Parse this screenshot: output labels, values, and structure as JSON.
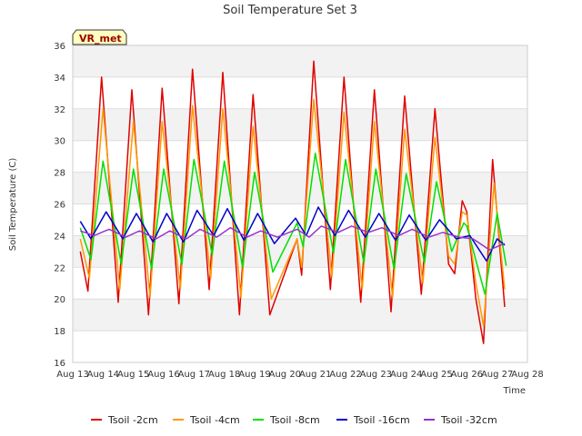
{
  "chart_data": {
    "type": "line",
    "title": "Soil Temperature Set 3",
    "xlabel": "Time",
    "ylabel": "Soil Temperature (C)",
    "badge": "VR_met",
    "ylim": [
      16,
      36
    ],
    "yticks": [
      16,
      18,
      20,
      22,
      24,
      26,
      28,
      30,
      32,
      34,
      36
    ],
    "xlim": [
      "Aug 13",
      "Aug 28"
    ],
    "xticks": [
      "Aug 13",
      "Aug 14",
      "Aug 15",
      "Aug 16",
      "Aug 17",
      "Aug 18",
      "Aug 19",
      "Aug 20",
      "Aug 21",
      "Aug 22",
      "Aug 23",
      "Aug 24",
      "Aug 25",
      "Aug 26",
      "Aug 27",
      "Aug 28"
    ],
    "grid": true,
    "legend_position": "bottom",
    "colors": {
      "Tsoil -2cm": "#e00000",
      "Tsoil -4cm": "#ff9900",
      "Tsoil -8cm": "#00e000",
      "Tsoil -16cm": "#0000cc",
      "Tsoil -32cm": "#9933cc",
      "band": "#f2f2f2",
      "grid": "#dddddd",
      "badge_bg": "#ffffc0"
    },
    "series": [
      {
        "name": "Tsoil -2cm",
        "points": [
          [
            0.25,
            23.0
          ],
          [
            0.5,
            20.5
          ],
          [
            0.95,
            34.0
          ],
          [
            1.5,
            19.8
          ],
          [
            1.95,
            33.2
          ],
          [
            2.5,
            19.0
          ],
          [
            2.95,
            33.3
          ],
          [
            3.5,
            19.7
          ],
          [
            3.95,
            34.5
          ],
          [
            4.5,
            20.6
          ],
          [
            4.95,
            34.3
          ],
          [
            5.5,
            19.0
          ],
          [
            5.95,
            32.9
          ],
          [
            6.5,
            19.0
          ],
          [
            7.4,
            23.8
          ],
          [
            7.55,
            21.5
          ],
          [
            7.95,
            35.0
          ],
          [
            8.5,
            20.6
          ],
          [
            8.95,
            34.0
          ],
          [
            9.5,
            19.8
          ],
          [
            9.95,
            33.2
          ],
          [
            10.5,
            19.2
          ],
          [
            10.95,
            32.8
          ],
          [
            11.5,
            20.3
          ],
          [
            11.95,
            32.0
          ],
          [
            12.4,
            22.2
          ],
          [
            12.6,
            21.6
          ],
          [
            12.85,
            26.2
          ],
          [
            13.0,
            25.5
          ],
          [
            13.3,
            20.0
          ],
          [
            13.55,
            17.2
          ],
          [
            13.85,
            28.8
          ],
          [
            14.25,
            19.5
          ]
        ]
      },
      {
        "name": "Tsoil -4cm",
        "points": [
          [
            0.25,
            23.8
          ],
          [
            0.55,
            21.3
          ],
          [
            1.0,
            32.0
          ],
          [
            1.55,
            20.6
          ],
          [
            2.0,
            31.2
          ],
          [
            2.55,
            20.1
          ],
          [
            2.95,
            31.2
          ],
          [
            3.55,
            20.6
          ],
          [
            3.95,
            32.2
          ],
          [
            4.55,
            21.3
          ],
          [
            4.95,
            32.0
          ],
          [
            5.55,
            20.1
          ],
          [
            5.95,
            30.9
          ],
          [
            6.55,
            20.0
          ],
          [
            7.4,
            23.8
          ],
          [
            7.55,
            22.0
          ],
          [
            7.95,
            32.6
          ],
          [
            8.55,
            21.4
          ],
          [
            8.95,
            31.8
          ],
          [
            9.55,
            20.6
          ],
          [
            9.95,
            31.2
          ],
          [
            10.55,
            20.1
          ],
          [
            10.95,
            30.7
          ],
          [
            11.55,
            21.0
          ],
          [
            11.95,
            30.2
          ],
          [
            12.4,
            22.7
          ],
          [
            12.6,
            22.2
          ],
          [
            12.85,
            25.5
          ],
          [
            13.0,
            25.3
          ],
          [
            13.3,
            21.0
          ],
          [
            13.55,
            18.3
          ],
          [
            13.9,
            27.3
          ],
          [
            14.25,
            20.6
          ]
        ]
      },
      {
        "name": "Tsoil -8cm",
        "points": [
          [
            0.25,
            24.5
          ],
          [
            0.6,
            22.5
          ],
          [
            1.0,
            28.7
          ],
          [
            1.6,
            22.2
          ],
          [
            2.0,
            28.2
          ],
          [
            2.6,
            21.9
          ],
          [
            3.0,
            28.2
          ],
          [
            3.6,
            22.2
          ],
          [
            4.0,
            28.8
          ],
          [
            4.6,
            22.8
          ],
          [
            5.0,
            28.7
          ],
          [
            5.6,
            22.0
          ],
          [
            6.0,
            28.0
          ],
          [
            6.6,
            21.7
          ],
          [
            7.4,
            24.8
          ],
          [
            7.6,
            23.3
          ],
          [
            8.0,
            29.2
          ],
          [
            8.6,
            22.9
          ],
          [
            9.0,
            28.8
          ],
          [
            9.6,
            22.3
          ],
          [
            10.0,
            28.2
          ],
          [
            10.6,
            21.9
          ],
          [
            11.0,
            27.9
          ],
          [
            11.6,
            22.3
          ],
          [
            12.0,
            27.4
          ],
          [
            12.5,
            23.0
          ],
          [
            12.9,
            24.8
          ],
          [
            13.0,
            24.6
          ],
          [
            13.6,
            20.3
          ],
          [
            14.0,
            25.4
          ],
          [
            14.3,
            22.1
          ]
        ]
      },
      {
        "name": "Tsoil -16cm",
        "points": [
          [
            0.25,
            24.9
          ],
          [
            0.6,
            23.8
          ],
          [
            1.1,
            25.5
          ],
          [
            1.65,
            23.8
          ],
          [
            2.1,
            25.4
          ],
          [
            2.65,
            23.6
          ],
          [
            3.1,
            25.4
          ],
          [
            3.65,
            23.6
          ],
          [
            4.1,
            25.6
          ],
          [
            4.65,
            24.0
          ],
          [
            5.1,
            25.7
          ],
          [
            5.65,
            23.7
          ],
          [
            6.1,
            25.4
          ],
          [
            6.65,
            23.5
          ],
          [
            7.35,
            25.1
          ],
          [
            7.7,
            24.0
          ],
          [
            8.1,
            25.8
          ],
          [
            8.65,
            24.0
          ],
          [
            9.1,
            25.6
          ],
          [
            9.65,
            23.9
          ],
          [
            10.1,
            25.4
          ],
          [
            10.65,
            23.7
          ],
          [
            11.1,
            25.3
          ],
          [
            11.65,
            23.7
          ],
          [
            12.1,
            25.0
          ],
          [
            12.65,
            23.8
          ],
          [
            13.1,
            24.0
          ],
          [
            13.65,
            22.4
          ],
          [
            14.0,
            23.8
          ],
          [
            14.25,
            23.4
          ]
        ]
      },
      {
        "name": "Tsoil -32cm",
        "points": [
          [
            0.25,
            24.3
          ],
          [
            0.7,
            24.0
          ],
          [
            1.2,
            24.4
          ],
          [
            1.75,
            23.9
          ],
          [
            2.2,
            24.3
          ],
          [
            2.75,
            23.8
          ],
          [
            3.2,
            24.3
          ],
          [
            3.75,
            23.8
          ],
          [
            4.2,
            24.4
          ],
          [
            4.75,
            23.9
          ],
          [
            5.2,
            24.5
          ],
          [
            5.75,
            23.9
          ],
          [
            6.2,
            24.3
          ],
          [
            6.75,
            23.9
          ],
          [
            7.4,
            24.4
          ],
          [
            7.8,
            23.9
          ],
          [
            8.2,
            24.6
          ],
          [
            8.75,
            24.2
          ],
          [
            9.2,
            24.6
          ],
          [
            9.75,
            24.2
          ],
          [
            10.2,
            24.5
          ],
          [
            10.75,
            24.0
          ],
          [
            11.2,
            24.4
          ],
          [
            11.75,
            23.9
          ],
          [
            12.2,
            24.2
          ],
          [
            12.75,
            23.9
          ],
          [
            13.2,
            23.8
          ],
          [
            13.75,
            23.1
          ],
          [
            14.25,
            23.5
          ]
        ]
      }
    ]
  }
}
